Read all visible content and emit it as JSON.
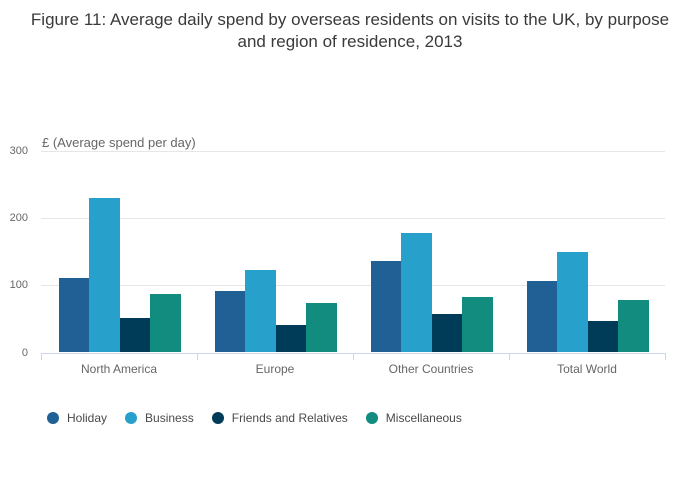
{
  "chart_data": {
    "type": "bar",
    "title": "Figure 11: Average daily spend by overseas residents on visits to the UK, by purpose and region of residence, 2013",
    "y_axis_title": "£ (Average spend per day)",
    "categories": [
      "North America",
      "Europe",
      "Other Countries",
      "Total World"
    ],
    "series": [
      {
        "name": "Holiday",
        "color": "#206095",
        "values": [
          111,
          92,
          136,
          106
        ]
      },
      {
        "name": "Business",
        "color": "#27a0cc",
        "values": [
          230,
          122,
          177,
          149
        ]
      },
      {
        "name": "Friends and Relatives",
        "color": "#003c57",
        "values": [
          51,
          41,
          57,
          47
        ]
      },
      {
        "name": "Miscellaneous",
        "color": "#118c7f",
        "values": [
          87,
          74,
          83,
          78
        ]
      }
    ],
    "ylim": [
      0,
      300
    ],
    "yticks": [
      300,
      200,
      100,
      0
    ],
    "grid": true,
    "legend_position": "bottom-left",
    "colors": {
      "gridline": "#e6e6e6",
      "axis_line": "#ccd6eb",
      "tick_text": "#666666",
      "category_text": "#666666",
      "title_text": "#3a3a3a",
      "legend_text": "#4a4a4a",
      "background": "#ffffff"
    }
  }
}
